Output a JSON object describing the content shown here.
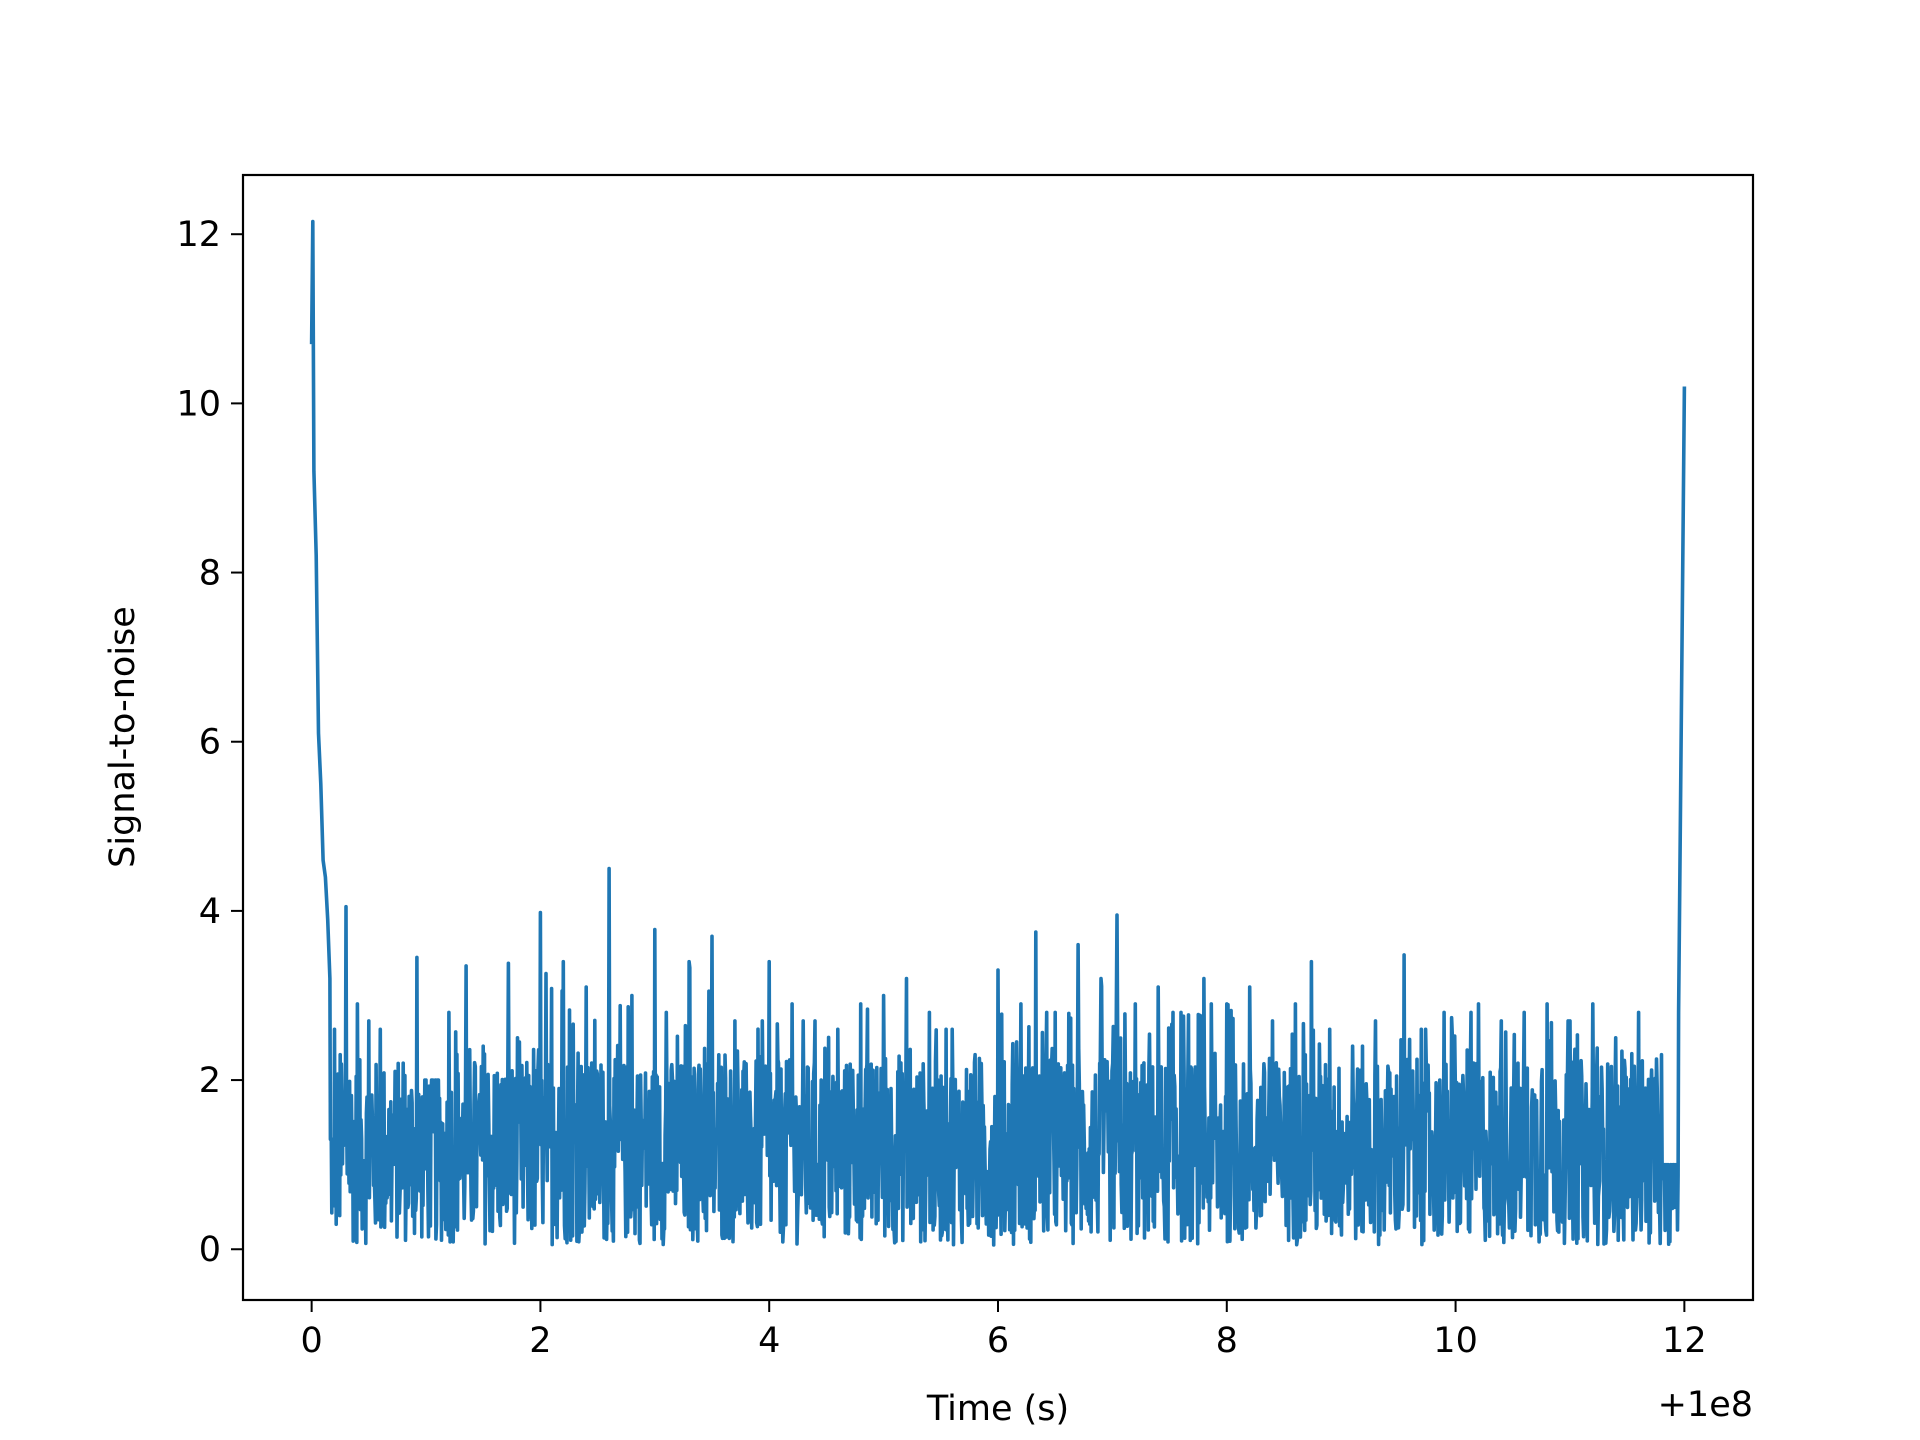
{
  "chart_data": {
    "type": "line",
    "title": "",
    "xlabel": "Time (s)",
    "ylabel": "Signal-to-noise",
    "x_offset_label": "+1e8",
    "xlim": [
      -0.6,
      12.6
    ],
    "ylim": [
      -0.6,
      12.7
    ],
    "xticks": [
      0,
      2,
      4,
      6,
      8,
      10,
      12
    ],
    "xtick_labels": [
      "0",
      "2",
      "4",
      "6",
      "8",
      "10",
      "12"
    ],
    "yticks": [
      0,
      2,
      4,
      6,
      8,
      10,
      12
    ],
    "ytick_labels": [
      "0",
      "2",
      "4",
      "6",
      "8",
      "10",
      "12"
    ],
    "grid": false,
    "legend": "none",
    "series": [
      {
        "color": "#1f77b4",
        "x": [
          0.0,
          0.01,
          0.02,
          0.04,
          0.06,
          0.08,
          0.1,
          0.12,
          0.14,
          0.16,
          0.18,
          0.2,
          0.25,
          0.3,
          0.4,
          0.5,
          0.6,
          0.8,
          0.92,
          1.0,
          1.2,
          1.35,
          1.5,
          1.72,
          1.8,
          2.0,
          2.2,
          2.4,
          2.6,
          2.8,
          3.0,
          3.1,
          3.3,
          3.5,
          3.7,
          4.0,
          4.2,
          4.4,
          4.6,
          4.8,
          5.0,
          5.2,
          5.4,
          5.6,
          5.8,
          6.0,
          6.2,
          6.33,
          6.5,
          6.7,
          6.9,
          7.04,
          7.2,
          7.4,
          7.6,
          7.8,
          8.0,
          8.2,
          8.4,
          8.6,
          8.74,
          8.9,
          9.1,
          9.3,
          9.55,
          9.7,
          9.9,
          10.2,
          10.4,
          10.6,
          10.8,
          11.0,
          11.2,
          11.4,
          11.6,
          11.8,
          11.9,
          11.95,
          12.0
        ],
        "y": [
          10.7,
          12.15,
          9.2,
          8.2,
          6.1,
          5.5,
          4.6,
          4.4,
          3.9,
          3.2,
          1.3,
          2.6,
          2.3,
          4.05,
          2.9,
          2.7,
          2.6,
          2.2,
          3.45,
          2.0,
          2.8,
          3.35,
          2.4,
          3.38,
          2.5,
          3.98,
          3.4,
          3.1,
          4.5,
          3.0,
          3.78,
          2.8,
          3.4,
          3.7,
          2.7,
          3.4,
          2.9,
          2.7,
          2.6,
          2.9,
          3.0,
          3.2,
          2.8,
          2.6,
          2.3,
          3.3,
          2.9,
          3.75,
          2.8,
          3.6,
          3.2,
          3.95,
          2.9,
          3.1,
          2.8,
          3.2,
          2.9,
          3.1,
          2.7,
          2.9,
          3.4,
          2.6,
          2.4,
          2.7,
          3.48,
          2.6,
          2.8,
          2.9,
          2.7,
          2.8,
          2.9,
          2.7,
          2.9,
          2.5,
          2.8,
          2.3,
          1.0,
          2.8,
          10.2
        ]
      }
    ]
  }
}
